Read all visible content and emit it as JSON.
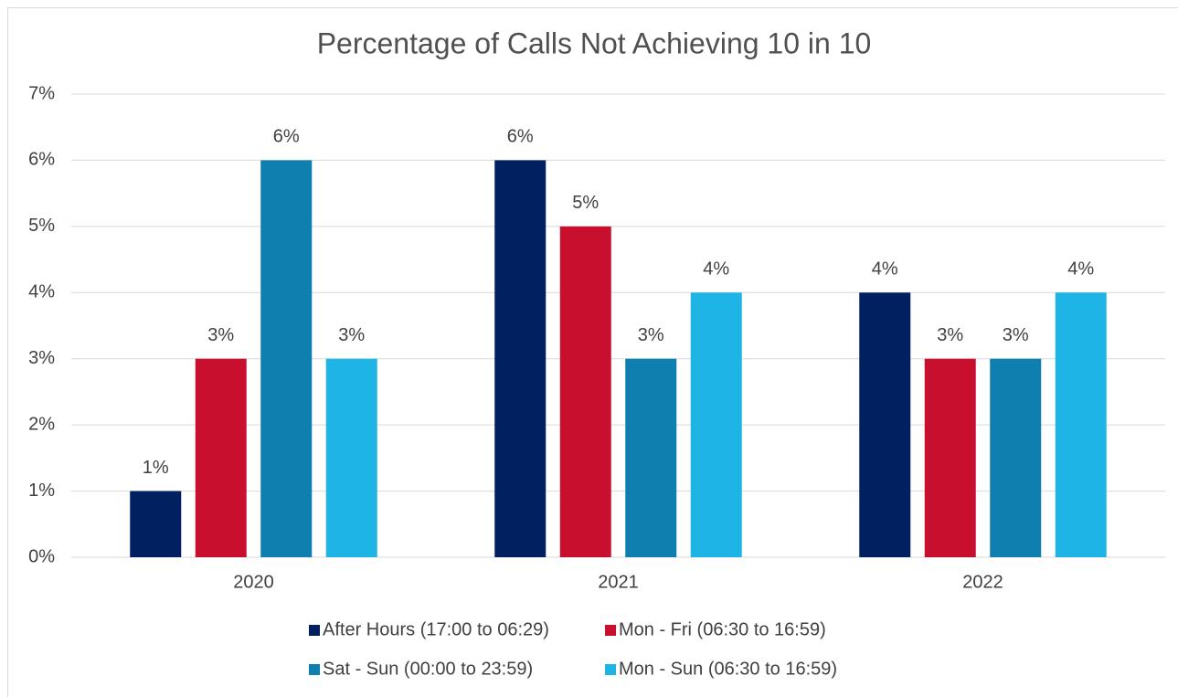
{
  "chart_data": {
    "type": "bar",
    "title": "Percentage of Calls Not Achieving 10 in 10",
    "categories": [
      "2020",
      "2021",
      "2022"
    ],
    "series": [
      {
        "name": "After Hours (17:00 to 06:29)",
        "color": "#002060",
        "values": [
          1,
          6,
          4
        ],
        "value_labels": [
          "1%",
          "6%",
          "4%"
        ]
      },
      {
        "name": "Mon - Fri (06:30 to 16:59)",
        "color": "#c8102e",
        "values": [
          3,
          5,
          3
        ],
        "value_labels": [
          "3%",
          "5%",
          "3%"
        ]
      },
      {
        "name": "Sat - Sun (00:00 to 23:59)",
        "color": "#0f7fb0",
        "values": [
          6,
          3,
          3
        ],
        "value_labels": [
          "6%",
          "3%",
          "3%"
        ]
      },
      {
        "name": "Mon - Sun (06:30 to 16:59)",
        "color": "#1fb4e6",
        "values": [
          3,
          4,
          4
        ],
        "value_labels": [
          "3%",
          "4%",
          "4%"
        ]
      }
    ],
    "ylim": [
      0,
      7
    ],
    "yticks": [
      {
        "value": 0,
        "label": "0%"
      },
      {
        "value": 1,
        "label": "1%"
      },
      {
        "value": 2,
        "label": "2%"
      },
      {
        "value": 3,
        "label": "3%"
      },
      {
        "value": 4,
        "label": "4%"
      },
      {
        "value": 5,
        "label": "5%"
      },
      {
        "value": 6,
        "label": "6%"
      },
      {
        "value": 7,
        "label": "7%"
      }
    ],
    "grid": true,
    "legend": "bottom"
  }
}
